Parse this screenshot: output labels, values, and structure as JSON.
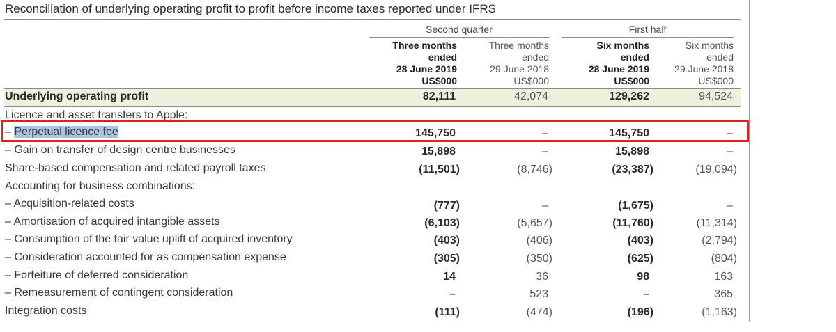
{
  "title": "Reconciliation of underlying operating profit to profit before income taxes reported under IFRS",
  "groups": {
    "second_quarter": "Second quarter",
    "first_half": "First half"
  },
  "headers": [
    {
      "line1": "Three months",
      "line2": "ended",
      "line3": "28 June 2019",
      "line4": "US$000"
    },
    {
      "line1": "Three months",
      "line2": "ended",
      "line3": "29 June 2018",
      "line4": "US$000"
    },
    {
      "line1": "Six months",
      "line2": "ended",
      "line3": "28 June 2019",
      "line4": "US$000"
    },
    {
      "line1": "Six months",
      "line2": "ended",
      "line3": "29 June 2018",
      "line4": "US$000"
    }
  ],
  "rows": [
    {
      "label": "Underlying operating profit",
      "values": [
        "82,111",
        "42,074",
        "129,262",
        "94,524"
      ]
    },
    {
      "label": "Licence and asset transfers to Apple:",
      "values": [
        "",
        "",
        "",
        ""
      ]
    },
    {
      "label_prefix": "– ",
      "label": "Perpetual licence fee",
      "values": [
        "145,750",
        "–",
        "145,750",
        "–"
      ]
    },
    {
      "label": "– Gain on transfer of design centre businesses",
      "values": [
        "15,898",
        "–",
        "15,898",
        "–"
      ]
    },
    {
      "label": "Share-based compensation and related payroll taxes",
      "values": [
        "(11,501)",
        "(8,746)",
        "(23,387)",
        "(19,094)"
      ]
    },
    {
      "label": "Accounting for business combinations:",
      "values": [
        "",
        "",
        "",
        ""
      ]
    },
    {
      "label": "– Acquisition-related costs",
      "values": [
        "(777)",
        "–",
        "(1,675)",
        "–"
      ]
    },
    {
      "label": "– Amortisation of acquired intangible assets",
      "values": [
        "(6,103)",
        "(5,657)",
        "(11,760)",
        "(11,314)"
      ]
    },
    {
      "label": "– Consumption of the fair value uplift of acquired inventory",
      "values": [
        "(403)",
        "(406)",
        "(403)",
        "(2,794)"
      ]
    },
    {
      "label": "– Consideration accounted for as compensation expense",
      "values": [
        "(305)",
        "(350)",
        "(625)",
        "(804)"
      ]
    },
    {
      "label": "– Forfeiture of deferred consideration",
      "values": [
        "14",
        "36",
        "98",
        "163"
      ]
    },
    {
      "label": "– Remeasurement of contingent consideration",
      "values": [
        "–",
        "523",
        "–",
        "365"
      ]
    },
    {
      "label": "Integration costs",
      "values": [
        "(111)",
        "(474)",
        "(196)",
        "(1,163)"
      ]
    }
  ]
}
